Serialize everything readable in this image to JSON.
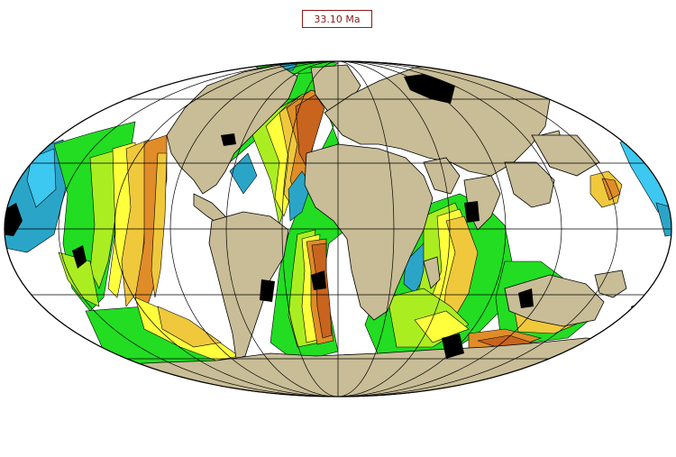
{
  "age_label": "33.10 Ma",
  "map": {
    "projection": "mollweide",
    "grid": true,
    "colors": {
      "land": "#c8bd96",
      "ocean": "#ffffff",
      "ice": "#000000",
      "crust_youngest": "#c8641e",
      "crust_orange": "#e08c28",
      "crust_gold": "#f0c83c",
      "crust_yellow": "#ffff3c",
      "crust_lime": "#aaee22",
      "crust_green": "#22dd22",
      "crust_teal": "#2aa5c8",
      "crust_cyan": "#3cc8f0",
      "outline": "#000000"
    }
  }
}
